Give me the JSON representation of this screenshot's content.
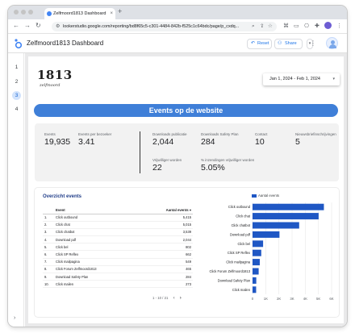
{
  "browser": {
    "tab_title": "Zelfmoord1813 Dashboard",
    "tab_close": "×",
    "new_tab": "+",
    "url": "lookerstudio.google.com/reporting/bd8f65c5-c301-4484-842b-f525c1c64bdc/page/p_cxdq..."
  },
  "header": {
    "title": "Zelfmoord1813 Dashboard",
    "reset_label": "Reset",
    "share_label": "Share"
  },
  "pages": [
    "1",
    "2",
    "3",
    "4"
  ],
  "active_page": "3",
  "logo": {
    "number": "1813",
    "signature": "zelfmoord"
  },
  "date_range": "Jan 1, 2024 - Feb 1, 2024",
  "banner": "Events op de website",
  "kpis": [
    {
      "label": "Events",
      "value": "19,935"
    },
    {
      "label": "Events per bezoeker",
      "value": "3.41"
    },
    {
      "label": "Downloads publicatie",
      "value": "2,044"
    },
    {
      "label": "Downloads Safety Plan",
      "value": "284"
    },
    {
      "label": "Contact",
      "value": "10"
    },
    {
      "label": "Nieuwsbriefinschrijvingen",
      "value": "5"
    },
    {
      "label": "Vrijwilliger worden",
      "value": "22"
    },
    {
      "label": "% inzendingen vrijwilliger worden",
      "value": "5.05%"
    }
  ],
  "events_table": {
    "title": "Overzicht events",
    "col_event": "Event",
    "col_count": "Aantal events",
    "sort_indicator": "▾",
    "rows": [
      {
        "n": "1.",
        "event": "Click outbound",
        "count": "5,415"
      },
      {
        "n": "2.",
        "event": "Click chat",
        "count": "5,015"
      },
      {
        "n": "3.",
        "event": "Click chatbot",
        "count": "3,539"
      },
      {
        "n": "4.",
        "event": "Download pdf",
        "count": "2,044"
      },
      {
        "n": "5.",
        "event": "Click bel",
        "count": "802"
      },
      {
        "n": "6.",
        "event": "Click SP Reflex",
        "count": "662"
      },
      {
        "n": "7.",
        "event": "Click mailpagina",
        "count": "549"
      },
      {
        "n": "8.",
        "event": "Click Forum Zelfmoord1813",
        "count": "465"
      },
      {
        "n": "9.",
        "event": "Download Safety Plan",
        "count": "284"
      },
      {
        "n": "10.",
        "event": "Click mailen",
        "count": "273"
      }
    ],
    "pagination": "1 - 10 / 21"
  },
  "chart_data": {
    "type": "bar",
    "orientation": "horizontal",
    "legend": "Aantal events",
    "categories": [
      "Click outbound",
      "Click chat",
      "Click chatbot",
      "Download pdf",
      "Click bel",
      "Click SP Reflex",
      "Click mailpagina",
      "Click Forum Zelfmoord1813",
      "Download Safety Plan",
      "Click mailen"
    ],
    "values": [
      5415,
      5015,
      3539,
      2044,
      802,
      662,
      549,
      465,
      284,
      273
    ],
    "xlim": [
      0,
      6000
    ],
    "ticks": [
      "0",
      "1K",
      "2K",
      "3K",
      "4K",
      "5K",
      "6K"
    ],
    "color": "#1f57c4",
    "grid": true
  },
  "colors": {
    "banner": "#3f7fd8",
    "accent": "#1a73e8",
    "bar": "#1f57c4"
  }
}
